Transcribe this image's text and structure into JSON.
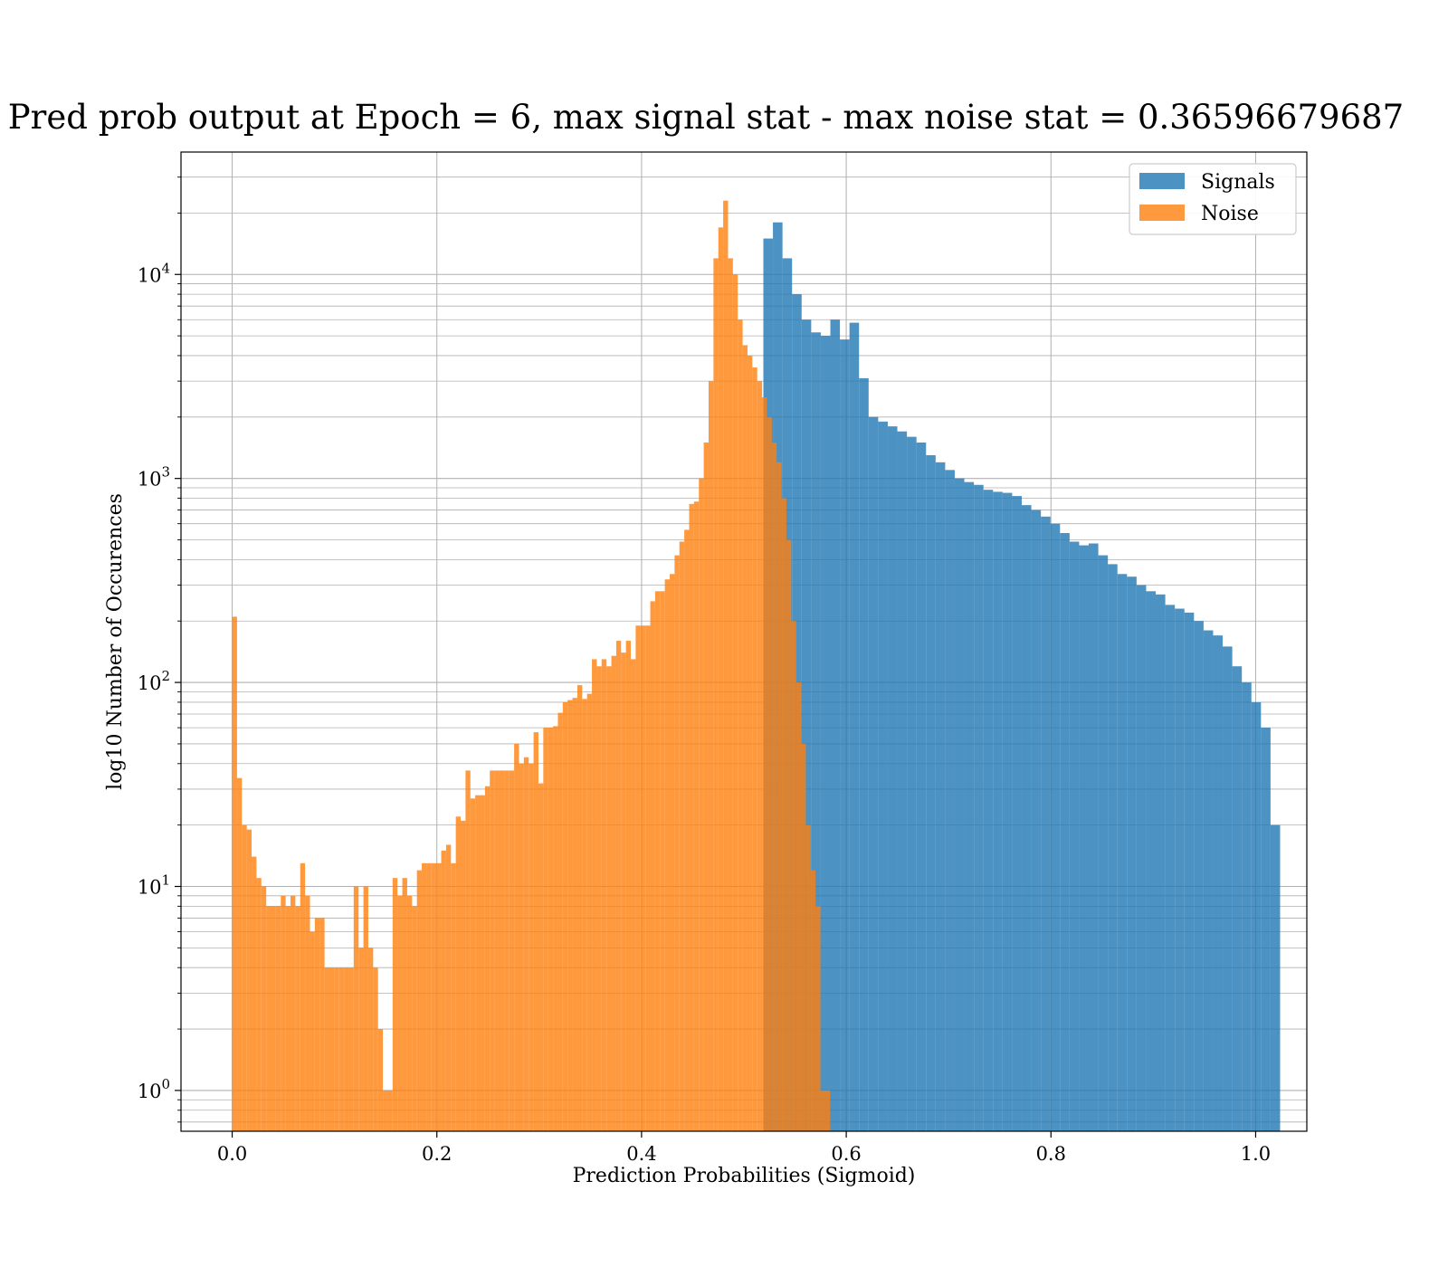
{
  "chart_data": {
    "type": "bar",
    "title": "Pred prob output at Epoch = 6, max signal stat - max noise stat = 0.36596679687",
    "xlabel": "Prediction Probabilities (Sigmoid)",
    "ylabel": "log10 Number of Occurences",
    "xlim": [
      -0.05,
      1.05
    ],
    "ylim_log10": [
      -0.2,
      4.6
    ],
    "yscale": "log",
    "grid": true,
    "legend_position": "top-right",
    "x_ticks": [
      "0.0",
      "0.2",
      "0.4",
      "0.6",
      "0.8",
      "1.0"
    ],
    "y_ticks": [
      {
        "base": "10",
        "exp": "0"
      },
      {
        "base": "10",
        "exp": "1"
      },
      {
        "base": "10",
        "exp": "2"
      },
      {
        "base": "10",
        "exp": "3"
      },
      {
        "base": "10",
        "exp": "4"
      }
    ],
    "series": [
      {
        "name": "Signals",
        "color": "#1f77b4",
        "opacity": 0.8,
        "bin_start": 0.519,
        "bin_width": 0.00935,
        "values": [
          15000,
          18000,
          12000,
          8000,
          6000,
          5200,
          5000,
          6000,
          4800,
          5800,
          3100,
          2000,
          1900,
          1800,
          1700,
          1600,
          1500,
          1300,
          1200,
          1100,
          1000,
          960,
          930,
          880,
          860,
          850,
          820,
          740,
          700,
          650,
          600,
          540,
          490,
          470,
          480,
          420,
          380,
          340,
          330,
          300,
          280,
          270,
          240,
          230,
          220,
          200,
          180,
          170,
          150,
          120,
          100,
          80,
          60,
          20
        ]
      },
      {
        "name": "Noise",
        "color": "#ff7f0e",
        "opacity": 0.8,
        "bin_start": 0.0,
        "bin_width": 0.00475,
        "values": [
          210,
          34,
          20,
          19,
          14,
          11,
          10,
          8,
          8,
          8,
          9,
          8,
          9,
          8,
          13,
          9,
          6,
          7,
          7,
          4,
          4,
          4,
          4,
          4,
          4,
          10,
          5,
          10,
          5,
          4,
          2,
          1,
          1,
          11,
          9,
          11,
          9,
          8,
          12,
          13,
          13,
          13,
          13,
          15,
          16,
          13,
          22,
          21,
          37,
          27,
          28,
          28,
          31,
          37,
          37,
          37,
          37,
          37,
          50,
          40,
          43,
          40,
          57,
          32,
          60,
          60,
          61,
          71,
          80,
          82,
          84,
          97,
          83,
          88,
          130,
          120,
          130,
          120,
          135,
          160,
          140,
          160,
          130,
          190,
          190,
          190,
          250,
          280,
          280,
          320,
          340,
          420,
          490,
          560,
          750,
          770,
          1000,
          1500,
          3000,
          12000,
          17000,
          23000,
          12000,
          10000,
          6000,
          4500,
          4000,
          3500,
          3000,
          2500,
          2000,
          1500,
          1200,
          800,
          500,
          200,
          100,
          50,
          20,
          12,
          8,
          1,
          1
        ]
      }
    ],
    "overlap_color": "#d8792b"
  }
}
